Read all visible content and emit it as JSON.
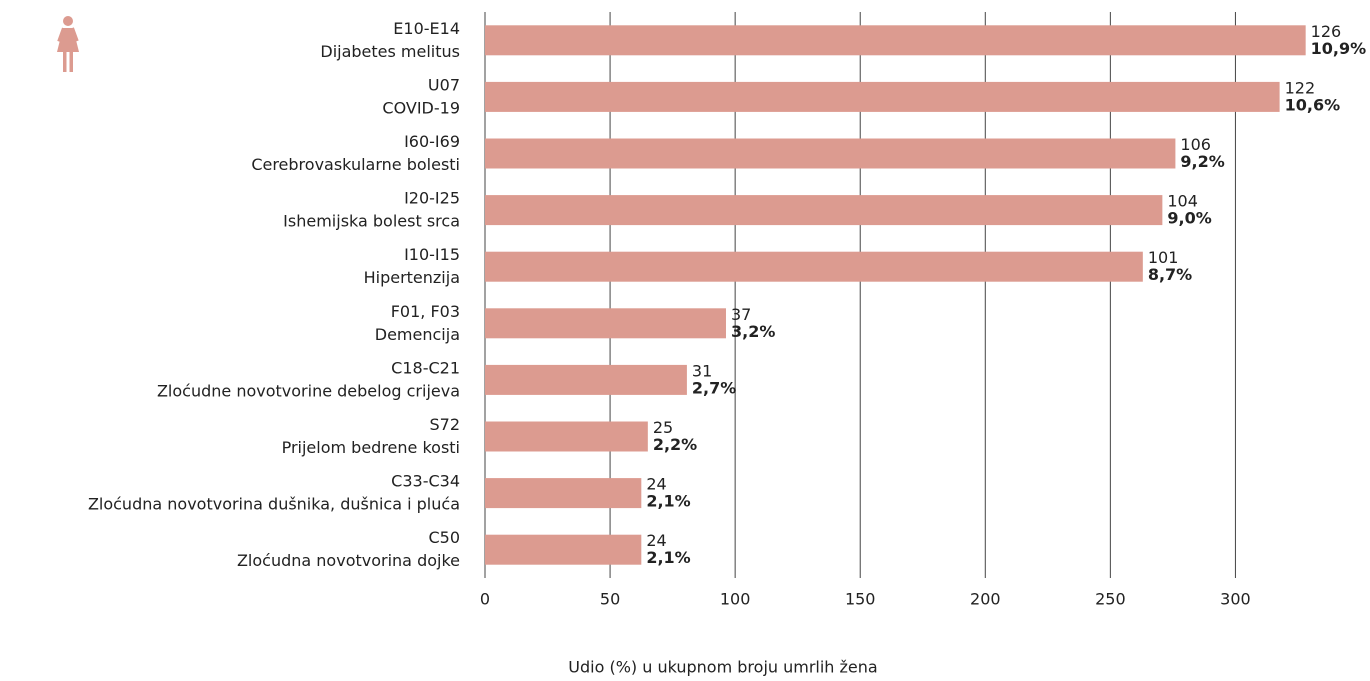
{
  "chart_data": {
    "type": "bar",
    "orientation": "horizontal",
    "x_label": "Udio (%) u ukupnom broju umrlih žena",
    "codes": [
      "E10-E14",
      "U07",
      "I60-I69",
      "I20-I25",
      "I10-I15",
      "F01, F03",
      "C18-C21",
      "S72",
      "C33-C34",
      "C50"
    ],
    "categories": [
      "Dijabetes melitus",
      "COVID-19",
      "Cerebrovaskularne bolesti",
      "Ishemijska bolest srca",
      "Hipertenzija",
      "Demencija",
      "Zloćudne novotvorine debelog crijeva",
      "Prijelom bedrene kosti",
      "Zloćudna novotvorina dušnika, dušnica i pluća",
      "Zloćudna novotvorina dojke"
    ],
    "values": [
      126,
      122,
      106,
      104,
      101,
      37,
      31,
      25,
      24,
      24
    ],
    "shares": [
      10.9,
      10.6,
      9.2,
      9.0,
      8.7,
      3.2,
      2.7,
      2.2,
      2.1,
      2.1
    ],
    "share_labels": [
      "10,9%",
      "10,6%",
      "9,2%",
      "9,0%",
      "8,7%",
      "3,2%",
      "2,7%",
      "2,2%",
      "2,1%",
      "2,1%"
    ],
    "color": "#dc9b90",
    "axis": "x2",
    "x2lim": [
      0,
      132.5
    ],
    "xlim": [
      0,
      345
    ],
    "xticks": [
      0,
      50,
      100,
      150,
      200,
      250,
      300
    ],
    "grid": true
  }
}
